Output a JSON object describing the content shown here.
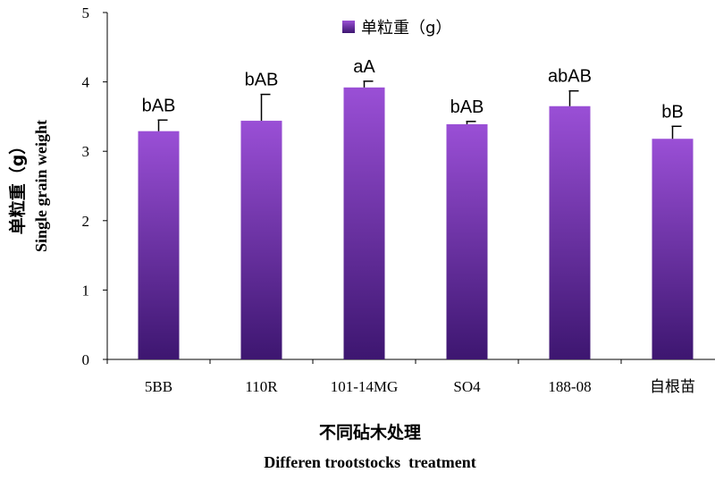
{
  "chart_data": {
    "type": "bar",
    "categories": [
      "5BB",
      "110R",
      "101-14MG",
      "SO4",
      "188-08",
      "自根苗"
    ],
    "series": [
      {
        "name": "单粒重（g）",
        "values": [
          3.29,
          3.44,
          3.92,
          3.39,
          3.65,
          3.18
        ],
        "error": [
          0.16,
          0.38,
          0.09,
          0.04,
          0.22,
          0.18
        ],
        "significance": [
          "bAB",
          "bAB",
          "aA",
          "bAB",
          "abAB",
          "bB"
        ]
      }
    ],
    "ylim": [
      0,
      5
    ],
    "yticks": [
      "0",
      "1",
      "2",
      "3",
      "4",
      "5"
    ],
    "ylabel_cn": "单粒重（g）",
    "ylabel_en": "Single grain weight",
    "xlabel_cn": "不同砧木处理",
    "xlabel_en": "Differen trootstocks  treatment",
    "legend_position": "top-center",
    "grid": false,
    "bar_color_light": "#9a4fd6",
    "bar_color_dark": "#3d1670"
  }
}
